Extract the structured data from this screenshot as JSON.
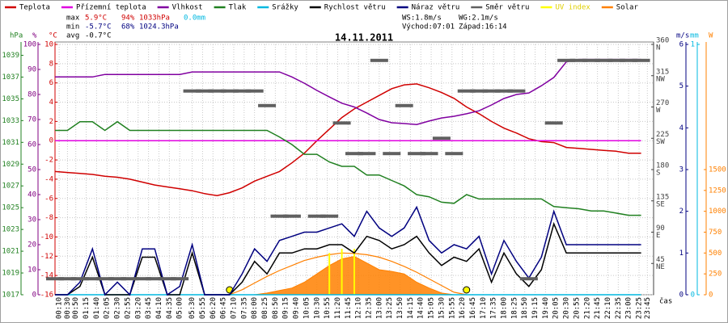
{
  "chart_data": {
    "type": "line",
    "title": "14.11.2011",
    "stats": {
      "max": {
        "label": "max",
        "temp": "5.9°C",
        "hum": "94%",
        "press": "1033hPa",
        "rain": "0.0mm"
      },
      "min": {
        "label": "min",
        "temp": "-5.7°C",
        "hum": "68%",
        "press": "1024.3hPa"
      },
      "avg": {
        "label": "avg",
        "temp": "-0.7°C"
      },
      "ws": "WS:1.8m/s",
      "wg": "WG:2.1m/s",
      "sunrise": "Východ:07:01",
      "sunset": "Západ:16:14"
    },
    "x_label": "čas",
    "xlim": [
      "00:00",
      "24:00"
    ],
    "xticks": [
      "00:10",
      "00:30",
      "00:50",
      "01:15",
      "01:40",
      "02:05",
      "02:30",
      "02:55",
      "03:20",
      "03:45",
      "04:10",
      "04:35",
      "05:00",
      "05:30",
      "05:55",
      "06:20",
      "06:45",
      "07:10",
      "07:35",
      "08:00",
      "08:25",
      "08:50",
      "09:15",
      "09:40",
      "10:05",
      "10:30",
      "10:55",
      "11:20",
      "11:45",
      "12:10",
      "12:35",
      "13:00",
      "13:25",
      "13:50",
      "14:15",
      "14:40",
      "15:05",
      "15:30",
      "15:55",
      "16:20",
      "16:45",
      "17:10",
      "17:35",
      "18:00",
      "18:25",
      "18:50",
      "19:15",
      "19:40",
      "20:05",
      "20:30",
      "20:55",
      "21:20",
      "21:45",
      "22:10",
      "22:35",
      "23:00",
      "23:25",
      "23:45"
    ],
    "grid": true,
    "axes": [
      {
        "id": "hpa",
        "label": "hPa",
        "color": "#208020",
        "lim": [
          1017,
          1040
        ],
        "ticks": [
          1017,
          1019,
          1021,
          1023,
          1025,
          1027,
          1029,
          1031,
          1033,
          1035,
          1037,
          1039
        ]
      },
      {
        "id": "pct",
        "label": "%",
        "color": "#800080",
        "lim": [
          0,
          100
        ],
        "ticks": [
          0,
          10,
          20,
          30,
          40,
          50,
          60,
          70,
          80,
          90,
          100
        ]
      },
      {
        "id": "temp",
        "label": "°C",
        "color": "#d00000",
        "lim": [
          -16,
          10
        ],
        "ticks": [
          -16,
          -14,
          -12,
          -10,
          -8,
          -6,
          -4,
          -2,
          0,
          2,
          4,
          6,
          8,
          10
        ]
      },
      {
        "id": "dir",
        "color": "#404040",
        "lim": [
          0,
          360
        ],
        "ticks": [
          45,
          90,
          135,
          180,
          225,
          270,
          315,
          360
        ],
        "tick_names": [
          "NE",
          "E",
          "SE",
          "S",
          "SW",
          "W",
          "NW",
          "N"
        ]
      },
      {
        "id": "wind",
        "label": "m/s",
        "color": "#000080",
        "lim": [
          0,
          6
        ],
        "ticks": [
          0,
          1,
          2,
          3,
          4,
          5,
          6
        ]
      },
      {
        "id": "mm",
        "label": "mm",
        "color": "#00b8e0",
        "lim": [
          0,
          1
        ],
        "ticks": [
          0,
          1
        ]
      },
      {
        "id": "w",
        "label": "W",
        "color": "#ff8000",
        "lim": [
          0,
          3000
        ],
        "ticks": [
          0,
          250,
          500,
          750,
          1000,
          1250,
          1500
        ]
      }
    ],
    "x": [
      "00:00",
      "00:30",
      "01:00",
      "01:30",
      "02:00",
      "02:30",
      "03:00",
      "03:30",
      "04:00",
      "04:30",
      "05:00",
      "05:30",
      "06:00",
      "06:30",
      "07:00",
      "07:30",
      "08:00",
      "08:30",
      "09:00",
      "09:30",
      "10:00",
      "10:30",
      "11:00",
      "11:30",
      "12:00",
      "12:30",
      "13:00",
      "13:30",
      "14:00",
      "14:30",
      "15:00",
      "15:30",
      "16:00",
      "16:30",
      "17:00",
      "17:30",
      "18:00",
      "18:30",
      "19:00",
      "19:30",
      "20:00",
      "20:30",
      "21:00",
      "21:30",
      "22:00",
      "22:30",
      "23:00",
      "23:30"
    ],
    "series": [
      {
        "name": "Teplota",
        "color": "#d00000",
        "axis": "temp",
        "style": "line",
        "values": [
          -3.2,
          -3.3,
          -3.4,
          -3.5,
          -3.7,
          -3.8,
          -4.0,
          -4.3,
          -4.6,
          -4.8,
          -5.0,
          -5.2,
          -5.5,
          -5.7,
          -5.4,
          -4.9,
          -4.2,
          -3.7,
          -3.2,
          -2.3,
          -1.3,
          0.0,
          1.2,
          2.4,
          3.3,
          4.0,
          4.7,
          5.4,
          5.8,
          5.9,
          5.5,
          5.0,
          4.4,
          3.5,
          2.8,
          2.0,
          1.3,
          0.8,
          0.2,
          -0.1,
          -0.2,
          -0.7,
          -0.8,
          -0.9,
          -1.0,
          -1.1,
          -1.3,
          -1.3
        ]
      },
      {
        "name": "Přízemní teplota",
        "color": "#e000e0",
        "axis": "temp",
        "style": "line",
        "values": [
          0,
          0,
          0,
          0,
          0,
          0,
          0,
          0,
          0,
          0,
          0,
          0,
          0,
          0,
          0,
          0,
          0,
          0,
          0,
          0,
          0,
          0,
          0,
          0,
          0,
          0,
          0,
          0,
          0,
          0,
          0,
          0,
          0,
          0,
          0,
          0,
          0,
          0,
          0,
          0,
          0,
          0,
          0,
          0,
          0,
          0,
          0,
          0
        ]
      },
      {
        "name": "Vlhkost",
        "color": "#8000a0",
        "axis": "pct",
        "style": "line",
        "values": [
          87,
          87,
          87,
          87,
          88,
          88,
          88,
          88,
          88,
          88,
          88,
          89,
          89,
          89,
          89,
          89,
          89,
          89,
          89,
          87,
          84.5,
          81.6,
          79,
          76.5,
          75,
          72.6,
          70,
          68.7,
          68.4,
          68,
          69.4,
          70.6,
          71.3,
          72.3,
          73.5,
          75.8,
          78.4,
          80,
          80.6,
          83.5,
          86.8,
          93,
          94,
          94,
          94,
          94,
          94,
          94
        ]
      },
      {
        "name": "Tlak",
        "color": "#208020",
        "axis": "hpa",
        "style": "line",
        "values": [
          1032.1,
          1032.1,
          1032.9,
          1032.9,
          1032.1,
          1032.9,
          1032.1,
          1032.1,
          1032.1,
          1032.1,
          1032.1,
          1032.1,
          1032.1,
          1032.1,
          1032.1,
          1032.1,
          1032.1,
          1032.1,
          1031.5,
          1030.8,
          1029.9,
          1029.9,
          1029.2,
          1028.8,
          1028.8,
          1028.0,
          1028.0,
          1027.5,
          1027.0,
          1026.2,
          1026.0,
          1025.5,
          1025.4,
          1026.2,
          1025.8,
          1025.8,
          1025.8,
          1025.8,
          1025.8,
          1025.8,
          1025.1,
          1025.0,
          1024.9,
          1024.7,
          1024.7,
          1024.5,
          1024.3,
          1024.3
        ]
      },
      {
        "name": "Srážky",
        "color": "#00b8e0",
        "axis": "mm",
        "style": "line",
        "values": [
          0,
          0,
          0,
          0,
          0,
          0,
          0,
          0,
          0,
          0,
          0,
          0,
          0,
          0,
          0,
          0,
          0,
          0,
          0,
          0,
          0,
          0,
          0,
          0,
          0,
          0,
          0,
          0,
          0,
          0,
          0,
          0,
          0,
          0,
          0,
          0,
          0,
          0,
          0,
          0,
          0,
          0,
          0,
          0,
          0,
          0,
          0,
          0
        ]
      },
      {
        "name": "Rychlost větru",
        "color": "#000000",
        "axis": "wind",
        "style": "line",
        "values": [
          0,
          0,
          0.2,
          0.9,
          0,
          0,
          0,
          0.9,
          0.9,
          0,
          0,
          1.0,
          0,
          0,
          0,
          0.3,
          0.8,
          0.5,
          1.0,
          1.0,
          1.1,
          1.1,
          1.2,
          1.2,
          1.0,
          1.4,
          1.3,
          1.1,
          1.2,
          1.4,
          1.0,
          0.7,
          0.9,
          0.8,
          1.1,
          0.3,
          1.0,
          0.5,
          0.2,
          0.6,
          1.7,
          1.0,
          1.0,
          1.0,
          1.0,
          1.0,
          1.0,
          1.0
        ]
      },
      {
        "name": "Náraz větru",
        "color": "#000080",
        "axis": "wind",
        "style": "line",
        "values": [
          0,
          0,
          0.3,
          1.1,
          0,
          0.3,
          0,
          1.1,
          1.1,
          0,
          0.2,
          1.2,
          0,
          0,
          0,
          0.5,
          1.1,
          0.8,
          1.3,
          1.4,
          1.5,
          1.5,
          1.6,
          1.7,
          1.4,
          2.0,
          1.6,
          1.4,
          1.6,
          2.1,
          1.3,
          1.0,
          1.2,
          1.1,
          1.4,
          0.5,
          1.3,
          0.8,
          0.4,
          0.9,
          2.0,
          1.2,
          1.2,
          1.2,
          1.2,
          1.2,
          1.2,
          1.2
        ]
      },
      {
        "name": "Směr větru",
        "color": "#606060",
        "axis": "dir",
        "style": "dash",
        "values": [
          23,
          23,
          23,
          23,
          23,
          23,
          23,
          23,
          23,
          23,
          23,
          293,
          293,
          293,
          293,
          293,
          293,
          272,
          113,
          113,
          null,
          113,
          113,
          247,
          203,
          203,
          337,
          203,
          272,
          203,
          203,
          225,
          203,
          293,
          293,
          293,
          293,
          293,
          23,
          null,
          247,
          337,
          337,
          337,
          337,
          337,
          337,
          337
        ]
      },
      {
        "name": "UV index",
        "color": "#ffff00",
        "axis": "wind",
        "style": "bar",
        "values": [
          0,
          0,
          0,
          0,
          0,
          0,
          0,
          0,
          0,
          0,
          0,
          0,
          0,
          0,
          0,
          0,
          0,
          0,
          0,
          0,
          0,
          0,
          1.0,
          1.1,
          1.1,
          0,
          0,
          0,
          0,
          0,
          0,
          0,
          0,
          0,
          0,
          0,
          0,
          0,
          0,
          0,
          0,
          0,
          0,
          0,
          0,
          0,
          0,
          0
        ]
      },
      {
        "name": "Solar",
        "color": "#ff8000",
        "axis": "w",
        "style": "area",
        "values": [
          0,
          0,
          0,
          0,
          0,
          0,
          0,
          0,
          0,
          0,
          0,
          0,
          0,
          0,
          0,
          0,
          0,
          20,
          50,
          80,
          150,
          250,
          350,
          430,
          460,
          380,
          300,
          280,
          250,
          150,
          80,
          20,
          0,
          0,
          0,
          0,
          0,
          0,
          0,
          0,
          0,
          0,
          0,
          0,
          0,
          0,
          0,
          0
        ]
      }
    ],
    "clear_sky_solar": {
      "color": "#ff8000",
      "axis": "w",
      "values": [
        null,
        null,
        null,
        null,
        null,
        null,
        null,
        null,
        null,
        null,
        null,
        null,
        null,
        null,
        0,
        60,
        140,
        220,
        290,
        350,
        410,
        450,
        480,
        500,
        495,
        480,
        450,
        400,
        340,
        270,
        190,
        110,
        30,
        0,
        null,
        null,
        null,
        null,
        null,
        null,
        null,
        null,
        null,
        null,
        null,
        null,
        null,
        null
      ]
    }
  }
}
